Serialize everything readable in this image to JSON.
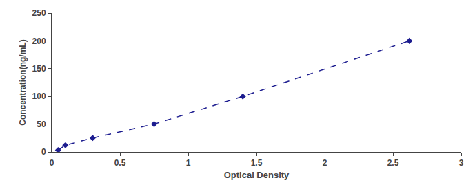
{
  "chart_data": {
    "type": "line",
    "x": [
      0.047,
      0.1,
      0.3,
      0.75,
      1.4,
      2.62
    ],
    "values": [
      3.0,
      12.0,
      25.0,
      50.0,
      100.0,
      200.0
    ],
    "color": "#1c1c8f",
    "marker": "diamond",
    "line_style": "dashed",
    "xlabel": "Optical Density",
    "ylabel": "Concentration(ng/mL)",
    "xlim": [
      0,
      3
    ],
    "ylim": [
      0,
      250
    ],
    "xticks": [
      0,
      0.5,
      1,
      1.5,
      2,
      2.5,
      3
    ],
    "yticks": [
      0,
      50,
      100,
      150,
      200,
      250
    ],
    "grid": false
  }
}
